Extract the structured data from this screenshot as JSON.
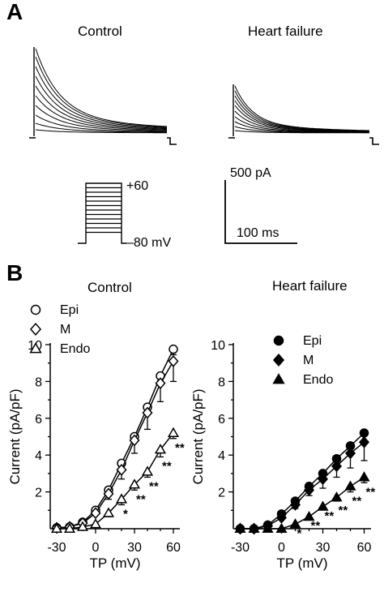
{
  "panel_a": {
    "letter": "A",
    "titles": [
      "Control",
      "Heart failure"
    ],
    "protocol": {
      "top_label": "+60",
      "bottom_label": "–80 mV"
    },
    "scale_bar": {
      "current": "500 pA",
      "time": "100 ms"
    }
  },
  "panel_b": {
    "letter": "B"
  },
  "chart_data": [
    {
      "type": "line",
      "title": "Control",
      "xlabel": "TP (mV)",
      "ylabel": "Current (pA/pF)",
      "xlim": [
        -35,
        65
      ],
      "ylim": [
        0,
        10
      ],
      "xticks": [
        "-30",
        "0",
        "30",
        "60"
      ],
      "yticks": [
        "2",
        "4",
        "6",
        "8",
        "10"
      ],
      "legend_position": "top-left",
      "x": [
        -30,
        -20,
        -10,
        0,
        10,
        20,
        30,
        40,
        50,
        60
      ],
      "series": [
        {
          "name": "Epi",
          "marker": "circle-open",
          "values": [
            0.05,
            0.1,
            0.35,
            1.0,
            2.1,
            3.55,
            5.0,
            6.6,
            8.3,
            9.75
          ],
          "err": [
            0,
            0,
            0,
            0,
            0.1,
            0.1,
            0.15,
            0.2,
            0.25,
            0.3
          ]
        },
        {
          "name": "M",
          "marker": "diamond-open",
          "values": [
            0.05,
            0.1,
            0.3,
            0.85,
            1.9,
            3.2,
            4.8,
            6.3,
            7.9,
            9.1
          ],
          "err": [
            0,
            0,
            0,
            0,
            0.3,
            0.5,
            0.7,
            0.9,
            1.0,
            1.1
          ]
        },
        {
          "name": "Endo",
          "marker": "triangle-open",
          "values": [
            0.0,
            0.0,
            0.1,
            0.25,
            0.85,
            1.6,
            2.4,
            3.1,
            4.3,
            5.2
          ],
          "err": [
            0,
            0,
            0,
            0,
            0.2,
            0.3,
            0.3,
            0.3,
            0.4,
            0.3
          ]
        }
      ],
      "annotations": [
        {
          "x": 20,
          "text": "*"
        },
        {
          "x": 30,
          "text": "**"
        },
        {
          "x": 40,
          "text": "**"
        },
        {
          "x": 50,
          "text": "**"
        },
        {
          "x": 60,
          "text": "**"
        }
      ]
    },
    {
      "type": "line",
      "title": "Heart failure",
      "xlabel": "TP (mV)",
      "ylabel": "Current (pA/pF)",
      "xlim": [
        -35,
        65
      ],
      "ylim": [
        0,
        10
      ],
      "xticks": [
        "-30",
        "0",
        "30",
        "60"
      ],
      "yticks": [
        "2",
        "4",
        "6",
        "8",
        "10"
      ],
      "legend_position": "top-left",
      "x": [
        -30,
        -20,
        -10,
        0,
        10,
        20,
        30,
        40,
        50,
        60
      ],
      "series": [
        {
          "name": "Epi",
          "marker": "circle-filled",
          "values": [
            0.0,
            0.0,
            0.2,
            0.8,
            1.5,
            2.3,
            3.0,
            3.8,
            4.5,
            5.2
          ],
          "err": [
            0,
            0,
            0,
            0,
            0,
            0,
            0,
            0,
            0,
            0
          ]
        },
        {
          "name": "M",
          "marker": "diamond-filled",
          "values": [
            0.0,
            0.0,
            0.15,
            0.6,
            1.3,
            2.1,
            2.7,
            3.4,
            4.1,
            4.7
          ],
          "err": [
            0,
            0,
            0,
            0,
            0.2,
            0.3,
            0.5,
            0.6,
            0.8,
            1.0
          ]
        },
        {
          "name": "Endo",
          "marker": "triangle-filled",
          "values": [
            0.0,
            0.0,
            0.0,
            0.0,
            0.25,
            0.65,
            1.2,
            1.7,
            2.3,
            2.8
          ],
          "err": [
            0,
            0,
            0,
            0,
            0,
            0,
            0,
            0.2,
            0.3,
            0.3
          ]
        }
      ],
      "annotations": [
        {
          "x": 10,
          "text": "*"
        },
        {
          "x": 20,
          "text": "**"
        },
        {
          "x": 30,
          "text": "**"
        },
        {
          "x": 40,
          "text": "**"
        },
        {
          "x": 50,
          "text": "**"
        },
        {
          "x": 60,
          "text": "**"
        }
      ]
    }
  ]
}
